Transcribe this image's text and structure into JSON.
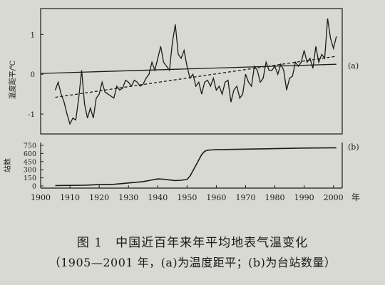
{
  "chart_data": [
    {
      "panel": "(a)",
      "type": "line",
      "ylabel": "温度距平/℃",
      "yticks": [
        "1",
        "0",
        "-1"
      ],
      "ylim": [
        -1.5,
        1.65
      ],
      "xlim": [
        1900,
        2003
      ],
      "series": [
        {
          "style": "solid",
          "x": [
            1905,
            1906,
            1907,
            1908,
            1909,
            1910,
            1911,
            1912,
            1913,
            1914,
            1915,
            1916,
            1917,
            1918,
            1919,
            1920,
            1921,
            1922,
            1923,
            1924,
            1925,
            1926,
            1927,
            1928,
            1929,
            1930,
            1931,
            1932,
            1933,
            1934,
            1935,
            1936,
            1937,
            1938,
            1939,
            1940,
            1941,
            1942,
            1943,
            1944,
            1945,
            1946,
            1947,
            1948,
            1949,
            1950,
            1951,
            1952,
            1953,
            1954,
            1955,
            1956,
            1957,
            1958,
            1959,
            1960,
            1961,
            1962,
            1963,
            1964,
            1965,
            1966,
            1967,
            1968,
            1969,
            1970,
            1971,
            1972,
            1973,
            1974,
            1975,
            1976,
            1977,
            1978,
            1979,
            1980,
            1981,
            1982,
            1983,
            1984,
            1985,
            1986,
            1987,
            1988,
            1989,
            1990,
            1991,
            1992,
            1993,
            1994,
            1995,
            1996,
            1997,
            1998,
            1999,
            2000,
            2001
          ],
          "y": [
            -0.4,
            -0.2,
            -0.5,
            -0.7,
            -1.0,
            -1.25,
            -1.1,
            -1.15,
            -0.6,
            0.1,
            -0.75,
            -1.1,
            -0.85,
            -1.1,
            -0.6,
            -0.5,
            -0.2,
            -0.45,
            -0.5,
            -0.55,
            -0.6,
            -0.3,
            -0.4,
            -0.35,
            -0.15,
            -0.2,
            -0.3,
            -0.15,
            -0.2,
            -0.3,
            -0.25,
            -0.1,
            0.0,
            0.3,
            0.1,
            0.4,
            0.7,
            0.3,
            0.2,
            0.1,
            0.8,
            1.25,
            0.5,
            0.4,
            0.6,
            0.2,
            -0.1,
            0.0,
            -0.3,
            -0.2,
            -0.5,
            -0.2,
            -0.15,
            -0.3,
            -0.1,
            -0.4,
            -0.3,
            -0.5,
            -0.2,
            -0.15,
            -0.7,
            -0.4,
            -0.3,
            -0.6,
            -0.5,
            0.0,
            -0.2,
            -0.3,
            0.2,
            0.1,
            -0.2,
            -0.1,
            0.3,
            0.1,
            0.1,
            0.2,
            0.0,
            0.25,
            0.1,
            -0.4,
            -0.1,
            -0.05,
            0.3,
            0.2,
            0.3,
            0.6,
            0.3,
            0.4,
            0.15,
            0.7,
            0.3,
            0.5,
            0.4,
            1.4,
            0.9,
            0.65,
            0.95
          ]
        },
        {
          "style": "dashed",
          "x": [
            1905,
            2001
          ],
          "y": [
            -0.58,
            0.45
          ]
        },
        {
          "style": "solid",
          "x": [
            1900,
            2001
          ],
          "y": [
            0.02,
            0.25
          ]
        }
      ]
    },
    {
      "panel": "(b)",
      "type": "line",
      "ylabel": "站数",
      "yticks": [
        "750",
        "600",
        "450",
        "300",
        "150",
        "0"
      ],
      "ylim": [
        0,
        750
      ],
      "xlim": [
        1900,
        2003
      ],
      "series": [
        {
          "style": "solid",
          "x": [
            1905,
            1910,
            1915,
            1920,
            1925,
            1928,
            1930,
            1932,
            1935,
            1938,
            1940,
            1942,
            1944,
            1946,
            1948,
            1950,
            1951,
            1952,
            1953,
            1954,
            1955,
            1956,
            1957,
            1958,
            1960,
            1965,
            1970,
            1980,
            1990,
            2001
          ],
          "y": [
            8,
            10,
            15,
            25,
            30,
            45,
            55,
            65,
            80,
            110,
            130,
            125,
            110,
            100,
            105,
            120,
            180,
            280,
            380,
            480,
            580,
            640,
            660,
            665,
            670,
            675,
            680,
            690,
            700,
            705
          ]
        }
      ]
    }
  ],
  "xaxis": {
    "ticks": [
      "1900",
      "1910",
      "1920",
      "1930",
      "1940",
      "1950",
      "1960",
      "1970",
      "1980",
      "1990",
      "2000"
    ],
    "unit": "年"
  },
  "caption": {
    "line1": "图 1　中国近百年来年平均地表气温变化",
    "line2": "（1905—2001 年，(a)为温度距平；(b)为台站数量）"
  }
}
